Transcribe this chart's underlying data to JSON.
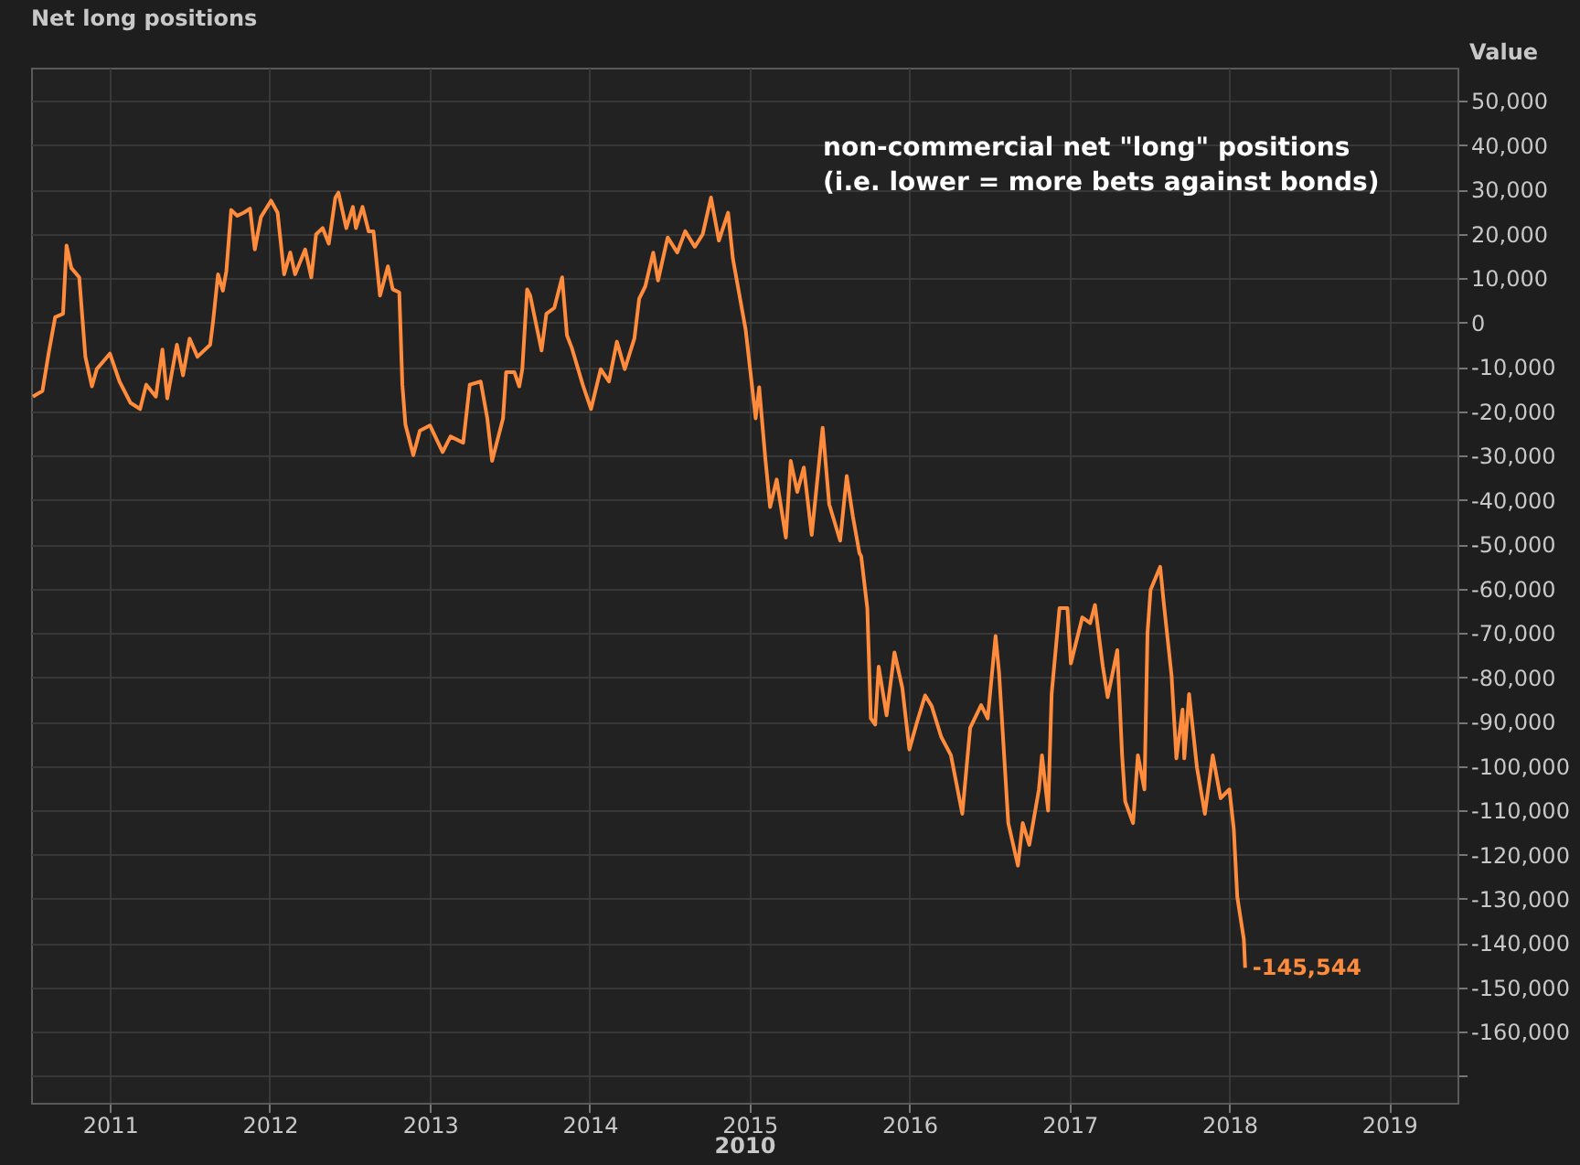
{
  "chart_data": {
    "type": "line",
    "title": "Net long positions",
    "ylabel": "Value",
    "xlabel": "2010",
    "annotations": [
      "non-commercial net \"long\" positions\n(i.e. lower = more bets against bonds)",
      {
        "text": "-145,544",
        "x": "2018-02-06",
        "y": -145544
      }
    ],
    "xlim": [
      "2010-07-05",
      "2019-06-06"
    ],
    "xticks": [
      "2011",
      "2012",
      "2013",
      "2014",
      "2015",
      "2016",
      "2017",
      "2018",
      "2019"
    ],
    "ylim": [
      -176000,
      57500
    ],
    "yticks": [
      {
        "value": -170000,
        "label": null
      },
      {
        "value": -160000,
        "label": "-160,000"
      },
      {
        "value": -150000,
        "label": "-150,000"
      },
      {
        "value": -140000,
        "label": "-140,000"
      },
      {
        "value": -130000,
        "label": "-130,000"
      },
      {
        "value": -120000,
        "label": "-120,000"
      },
      {
        "value": -110000,
        "label": "-110,000"
      },
      {
        "value": -100000,
        "label": "-100,000"
      },
      {
        "value": -90000,
        "label": "-90,000"
      },
      {
        "value": -80000,
        "label": "-80,000"
      },
      {
        "value": -70000,
        "label": "-70,000"
      },
      {
        "value": -60000,
        "label": "-60,000"
      },
      {
        "value": -50000,
        "label": "-50,000"
      },
      {
        "value": -40000,
        "label": "-40,000"
      },
      {
        "value": -30000,
        "label": "-30,000"
      },
      {
        "value": -20000,
        "label": "-20,000"
      },
      {
        "value": -10000,
        "label": "-10,000"
      },
      0,
      {
        "value": 10000,
        "label": "10,000"
      },
      {
        "value": 20000,
        "label": "20,000"
      },
      {
        "value": 30000,
        "label": "30,000"
      },
      {
        "value": 40000,
        "label": "40,000"
      },
      {
        "value": 50000,
        "label": "50,000"
      }
    ],
    "grid": true,
    "line_style": "solid",
    "marker": "none",
    "x": [
      "2010-07-09",
      "2010-07-31",
      "2010-08-14",
      "2010-08-29",
      "2010-09-16",
      "2010-09-24",
      "2010-10-05",
      "2010-10-23",
      "2010-11-06",
      "2010-11-21",
      "2010-12-02",
      "2011-01-01",
      "2011-01-23",
      "2011-02-17",
      "2011-03-11",
      "2011-03-25",
      "2011-04-16",
      "2011-05-01",
      "2011-05-12",
      "2011-06-03",
      "2011-06-17",
      "2011-07-02",
      "2011-07-20",
      "2011-08-18",
      "2011-08-25",
      "2011-09-05",
      "2011-09-16",
      "2011-09-24",
      "2011-10-05",
      "2011-10-19",
      "2011-11-03",
      "2011-11-17",
      "2011-11-28",
      "2011-12-12",
      "2012-01-04",
      "2012-01-19",
      "2012-02-03",
      "2012-02-17",
      "2012-02-28",
      "2012-03-22",
      "2012-04-05",
      "2012-04-16",
      "2012-05-01",
      "2012-05-15",
      "2012-05-30",
      "2012-06-06",
      "2012-06-24",
      "2012-07-09",
      "2012-07-16",
      "2012-07-31",
      "2012-08-14",
      "2012-08-25",
      "2012-09-09",
      "2012-09-27",
      "2012-10-08",
      "2012-10-23",
      "2012-10-30",
      "2012-11-06",
      "2012-11-24",
      "2012-12-09",
      "2013-01-01",
      "2013-01-30",
      "2013-02-17",
      "2013-03-18",
      "2013-04-02",
      "2013-04-27",
      "2013-05-12",
      "2013-05-23",
      "2013-06-17",
      "2013-06-24",
      "2013-07-13",
      "2013-07-24",
      "2013-07-31",
      "2013-08-11",
      "2013-08-18",
      "2013-09-13",
      "2013-09-24",
      "2013-10-12",
      "2013-10-30",
      "2013-11-10",
      "2013-11-21",
      "2013-12-16",
      "2014-01-04",
      "2014-01-26",
      "2014-02-14",
      "2014-03-04",
      "2014-03-22",
      "2014-04-13",
      "2014-04-24",
      "2014-05-08",
      "2014-05-26",
      "2014-06-06",
      "2014-06-28",
      "2014-07-20",
      "2014-08-07",
      "2014-08-29",
      "2014-09-16",
      "2014-10-05",
      "2014-10-23",
      "2014-11-13",
      "2014-11-24",
      "2014-12-23",
      "2015-01-15",
      "2015-01-23",
      "2015-02-06",
      "2015-02-17",
      "2015-03-04",
      "2015-03-25",
      "2015-04-05",
      "2015-04-20",
      "2015-05-05",
      "2015-05-23",
      "2015-06-17",
      "2015-07-02",
      "2015-07-27",
      "2015-08-11",
      "2015-08-25",
      "2015-09-09",
      "2015-09-13",
      "2015-09-27",
      "2015-10-05",
      "2015-10-15",
      "2015-10-23",
      "2015-11-10",
      "2015-11-28",
      "2015-12-16",
      "2016-01-01",
      "2016-01-19",
      "2016-02-06",
      "2016-02-21",
      "2016-03-14",
      "2016-04-05",
      "2016-05-01",
      "2016-05-19",
      "2016-06-13",
      "2016-06-28",
      "2016-07-16",
      "2016-07-24",
      "2016-08-14",
      "2016-09-05",
      "2016-09-16",
      "2016-10-01",
      "2016-10-23",
      "2016-10-30",
      "2016-11-13",
      "2016-11-21",
      "2016-12-09",
      "2016-12-27",
      "2017-01-04",
      "2017-01-30",
      "2017-02-17",
      "2017-02-28",
      "2017-03-18",
      "2017-03-29",
      "2017-04-20",
      "2017-05-01",
      "2017-05-08",
      "2017-05-26",
      "2017-06-06",
      "2017-06-21",
      "2017-06-28",
      "2017-07-05",
      "2017-07-27",
      "2017-08-04",
      "2017-08-22",
      "2017-09-02",
      "2017-09-16",
      "2017-09-20",
      "2017-10-01",
      "2017-10-19",
      "2017-11-06",
      "2017-11-24",
      "2017-12-12",
      "2018-01-01",
      "2018-01-11",
      "2018-01-19",
      "2018-02-03",
      "2018-02-06"
    ],
    "series": [
      {
        "color": "#ff8c3c",
        "values": [
          -16700,
          -15400,
          -7000,
          1200,
          2000,
          17400,
          12300,
          10200,
          -7700,
          -14400,
          -10500,
          -7000,
          -13300,
          -18100,
          -19500,
          -14000,
          -16700,
          -6100,
          -17100,
          -5000,
          -11900,
          -3600,
          -7700,
          -5000,
          500,
          10900,
          7200,
          11600,
          25400,
          24100,
          24800,
          25700,
          16500,
          23800,
          27500,
          24800,
          10900,
          15800,
          10900,
          16500,
          10200,
          19900,
          21300,
          17800,
          28200,
          29300,
          21300,
          26100,
          21300,
          26100,
          20600,
          20600,
          6100,
          12700,
          7500,
          6800,
          -14000,
          -23000,
          -29900,
          -24400,
          -23200,
          -29200,
          -25700,
          -27100,
          -14000,
          -13300,
          -21600,
          -31200,
          -21600,
          -11200,
          -11200,
          -14400,
          -10500,
          7500,
          6100,
          -6300,
          2000,
          3300,
          10200,
          -2900,
          -5700,
          -14000,
          -19500,
          -10500,
          -13300,
          -4300,
          -10500,
          -3600,
          5400,
          8200,
          15800,
          9500,
          19200,
          15800,
          20600,
          17100,
          19900,
          28200,
          18500,
          24800,
          14400,
          -1500,
          -21600,
          -14600,
          -30600,
          -41600,
          -35400,
          -48500,
          -31200,
          -38200,
          -32700,
          -47900,
          -23700,
          -41000,
          -49200,
          -34600,
          -43700,
          -52000,
          -52700,
          -64400,
          -89300,
          -90700,
          -77600,
          -88600,
          -74400,
          -82400,
          -96300,
          -90000,
          -84100,
          -86500,
          -93500,
          -97600,
          -110800,
          -91400,
          -86300,
          -89300,
          -70700,
          -79000,
          -112900,
          -122500,
          -112900,
          -117800,
          -105300,
          -97600,
          -110100,
          -83800,
          -64400,
          -64400,
          -76900,
          -66500,
          -67800,
          -63700,
          -77600,
          -84500,
          -73900,
          -97600,
          -108000,
          -112900,
          -97600,
          -105300,
          -70000,
          -60300,
          -55100,
          -63100,
          -79700,
          -98300,
          -87300,
          -98300,
          -83800,
          -100400,
          -110800,
          -97600,
          -107300,
          -105300,
          -114200,
          -129500,
          -139100,
          -145544
        ]
      }
    ]
  }
}
